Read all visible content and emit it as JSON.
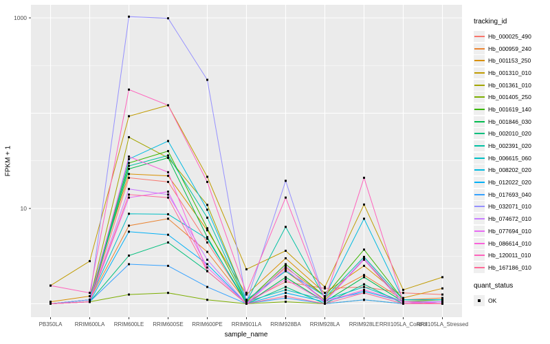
{
  "chart_data": {
    "type": "line",
    "title": "",
    "xlabel": "sample_name",
    "ylabel": "FPKM + 1",
    "y_scale": "log10",
    "ylim": [
      0.73,
      1400
    ],
    "y_tick_labels": [
      {
        "value": 10,
        "label": "10"
      },
      {
        "value": 1000,
        "label": "1000"
      }
    ],
    "y_major_gridlines": [
      1,
      10,
      100,
      1000
    ],
    "y_minor_gridlines": [
      3.162,
      31.62,
      316.2
    ],
    "grid": "on",
    "panel_color": "#ebebeb",
    "gridline_color": "#ffffff",
    "point_color": "#000000",
    "legend_position": "right",
    "categories": [
      "PB350LA",
      "RRIM600LA",
      "RRIM600LE",
      "RRIM600SE",
      "RRIM600PE",
      "RRIM901LA",
      "RRIM928BA",
      "RRIM928LA",
      "RRIM928LE",
      "RRII105LA_Control",
      "RRII105LA_Stressed"
    ],
    "series": [
      {
        "name": "Hb_000025_490",
        "color": "#F8766D",
        "values": [
          1.0,
          1.05,
          21,
          19,
          4.4,
          1.05,
          1.7,
          1.45,
          1.5,
          1.3,
          1.25
        ]
      },
      {
        "name": "Hb_000959_240",
        "color": "#EA8331",
        "values": [
          1.0,
          1.1,
          6.6,
          7.8,
          3.5,
          1.05,
          2.4,
          1.2,
          2.0,
          1.1,
          1.15
        ]
      },
      {
        "name": "Hb_001153_250",
        "color": "#D89000",
        "values": [
          1.05,
          1.2,
          23,
          22,
          5.9,
          1.25,
          3.0,
          1.3,
          2.5,
          1.15,
          1.45
        ]
      },
      {
        "name": "Hb_001310_010",
        "color": "#C09B00",
        "values": [
          1.55,
          2.8,
          93,
          121,
          21.5,
          2.3,
          3.6,
          1.5,
          11,
          1.4,
          1.9
        ]
      },
      {
        "name": "Hb_001361_010",
        "color": "#A3A500",
        "values": [
          1.0,
          1.1,
          56,
          34,
          10.9,
          1.1,
          2.2,
          1.1,
          2.9,
          1.05,
          1.1
        ]
      },
      {
        "name": "Hb_001405_250",
        "color": "#7CAE00",
        "values": [
          1.0,
          1.05,
          1.25,
          1.3,
          1.1,
          1.0,
          1.05,
          1.0,
          1.1,
          1.0,
          1.05
        ]
      },
      {
        "name": "Hb_001619_140",
        "color": "#39B600",
        "values": [
          1.0,
          1.1,
          30,
          40,
          6.2,
          1.05,
          2.6,
          1.2,
          3.7,
          1.1,
          1.1
        ]
      },
      {
        "name": "Hb_001846_030",
        "color": "#00BB4E",
        "values": [
          1.0,
          1.05,
          26,
          34,
          5.0,
          1.0,
          1.9,
          1.05,
          1.9,
          1.05,
          1.05
        ]
      },
      {
        "name": "Hb_002010_020",
        "color": "#00BF7D",
        "values": [
          1.0,
          1.05,
          3.2,
          4.4,
          2.2,
          1.0,
          1.5,
          1.0,
          1.6,
          1.0,
          1.05
        ]
      },
      {
        "name": "Hb_002391_020",
        "color": "#00C1A3",
        "values": [
          1.0,
          1.1,
          28,
          36,
          8.0,
          1.05,
          6.4,
          1.15,
          3.1,
          1.1,
          1.1
        ]
      },
      {
        "name": "Hb_006615_060",
        "color": "#00BFC4",
        "values": [
          1.0,
          1.1,
          8.8,
          8.7,
          4.8,
          1.05,
          1.4,
          1.1,
          1.5,
          1.05,
          1.05
        ]
      },
      {
        "name": "Hb_008202_020",
        "color": "#00BAE0",
        "values": [
          1.0,
          1.1,
          33,
          51,
          9.7,
          1.1,
          2.2,
          1.2,
          7.8,
          1.1,
          1.1
        ]
      },
      {
        "name": "Hb_012022_020",
        "color": "#00B0F6",
        "values": [
          1.0,
          1.05,
          5.7,
          5.3,
          2.6,
          1.0,
          1.3,
          1.05,
          1.35,
          1.05,
          1.05
        ]
      },
      {
        "name": "Hb_017693_040",
        "color": "#35A2FF",
        "values": [
          1.0,
          1.05,
          2.6,
          2.5,
          1.5,
          1.0,
          1.15,
          1.0,
          1.1,
          1.0,
          1.0
        ]
      },
      {
        "name": "Hb_032071_010",
        "color": "#9590FF",
        "values": [
          1.0,
          1.1,
          1030,
          990,
          224,
          1.05,
          19.5,
          1.1,
          1.3,
          1.0,
          1.05
        ]
      },
      {
        "name": "Hb_074672_010",
        "color": "#C77CFF",
        "values": [
          1.0,
          1.05,
          16,
          14,
          2.9,
          1.0,
          2.5,
          1.05,
          3.0,
          1.05,
          1.05
        ]
      },
      {
        "name": "Hb_077694_010",
        "color": "#E76BF3",
        "values": [
          1.0,
          1.05,
          13,
          15,
          2.4,
          1.0,
          2.3,
          1.05,
          2.9,
          1.0,
          1.05
        ]
      },
      {
        "name": "Hb_086614_010",
        "color": "#FA62DB",
        "values": [
          1.0,
          1.05,
          35,
          24,
          2.2,
          1.0,
          1.8,
          1.05,
          1.4,
          1.05,
          1.0
        ]
      },
      {
        "name": "Hb_120011_010",
        "color": "#FF62BC",
        "values": [
          1.55,
          1.3,
          177,
          121,
          19,
          1.3,
          13,
          1.1,
          21,
          1.05,
          1.0
        ]
      },
      {
        "name": "Hb_167186_010",
        "color": "#FF6A98",
        "values": [
          1.0,
          1.05,
          14,
          13,
          2.2,
          1.0,
          1.2,
          1.0,
          1.3,
          1.0,
          1.0
        ]
      }
    ],
    "legend": {
      "color_legend_title": "tracking_id",
      "shape_legend_title": "quant_status",
      "shape_legend_items": [
        {
          "label": "OK",
          "marker": "black-square"
        }
      ]
    }
  }
}
